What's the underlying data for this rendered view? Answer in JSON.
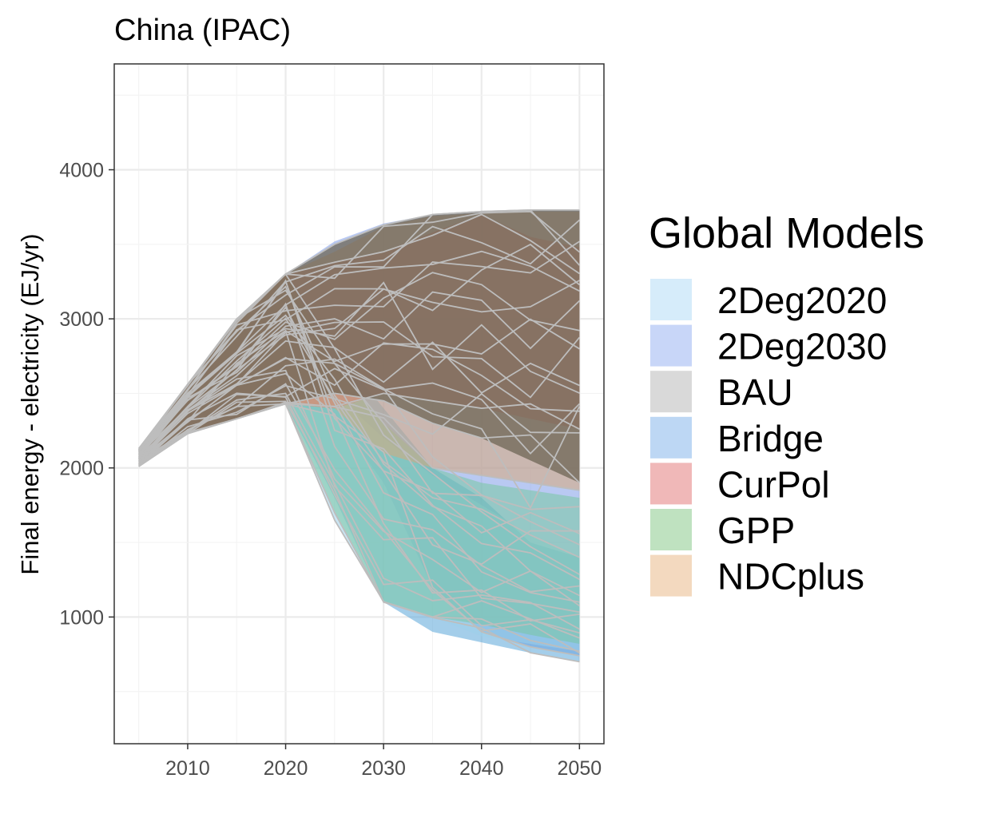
{
  "chart_data": {
    "type": "area",
    "title": "China (IPAC)",
    "xlabel": "",
    "ylabel": "Final energy - electricity (EJ/yr)",
    "x_ticks": [
      2010,
      2020,
      2030,
      2040,
      2050
    ],
    "y_ticks": [
      1000,
      2000,
      3000,
      4000
    ],
    "xlim": [
      2002.5,
      2052.5
    ],
    "ylim": [
      150,
      4710
    ],
    "grid": true,
    "legend": {
      "title": "Global Models",
      "placement": "right"
    },
    "x": [
      2005,
      2010,
      2015,
      2020,
      2025,
      2030,
      2035,
      2040,
      2045,
      2050
    ],
    "series": [
      {
        "name": "2Deg2020",
        "color": "#d6ecfa",
        "upper": [
          2130,
          2560,
          3000,
          3300,
          2500,
          2200,
          1950,
          1750,
          1550,
          1400
        ],
        "lower": [
          2010,
          2230,
          2330,
          2430,
          1650,
          1100,
          1000,
          870,
          820,
          770
        ]
      },
      {
        "name": "2Deg2030",
        "color": "#c8d6f8",
        "upper": [
          2130,
          2560,
          3000,
          3300,
          3520,
          3640,
          3700,
          3720,
          3730,
          3730
        ],
        "lower": [
          2010,
          2230,
          2330,
          2430,
          2350,
          1900,
          1200,
          900,
          800,
          740
        ]
      },
      {
        "name": "BAU",
        "color": "#d9d9d9",
        "upper": [
          2130,
          2560,
          3000,
          3300,
          3500,
          3630,
          3700,
          3720,
          3730,
          3730
        ],
        "lower": [
          2010,
          2230,
          2330,
          2430,
          2500,
          2450,
          2300,
          2200,
          2050,
          1900
        ]
      },
      {
        "name": "Bridge",
        "color": "#bdd7f4",
        "upper": [
          2130,
          2560,
          3000,
          3300,
          2800,
          2400,
          2000,
          1800,
          1500,
          1400
        ],
        "lower": [
          2010,
          2230,
          2330,
          2430,
          1800,
          1100,
          900,
          830,
          760,
          700
        ]
      },
      {
        "name": "CurPol",
        "color": "#f0b8b8",
        "upper": [
          2130,
          2560,
          3000,
          3300,
          3380,
          3450,
          3580,
          3700,
          3550,
          3480
        ],
        "lower": [
          2010,
          2230,
          2330,
          2430,
          2400,
          2500,
          2450,
          2400,
          2330,
          2260
        ]
      },
      {
        "name": "GPP",
        "color": "#bfe2c0",
        "upper": [
          2130,
          2560,
          3000,
          3300,
          2700,
          2300,
          2000,
          1900,
          1850,
          1800
        ],
        "lower": [
          2010,
          2230,
          2330,
          2430,
          1700,
          1100,
          1000,
          950,
          880,
          820
        ]
      },
      {
        "name": "NDCplus",
        "color": "#f3d9bf",
        "upper": [
          2130,
          2560,
          3000,
          3300,
          3450,
          3620,
          3690,
          3710,
          3720,
          3720
        ],
        "lower": [
          2010,
          2230,
          2330,
          2430,
          2400,
          2100,
          2000,
          1950,
          1900,
          1850
        ]
      }
    ]
  }
}
